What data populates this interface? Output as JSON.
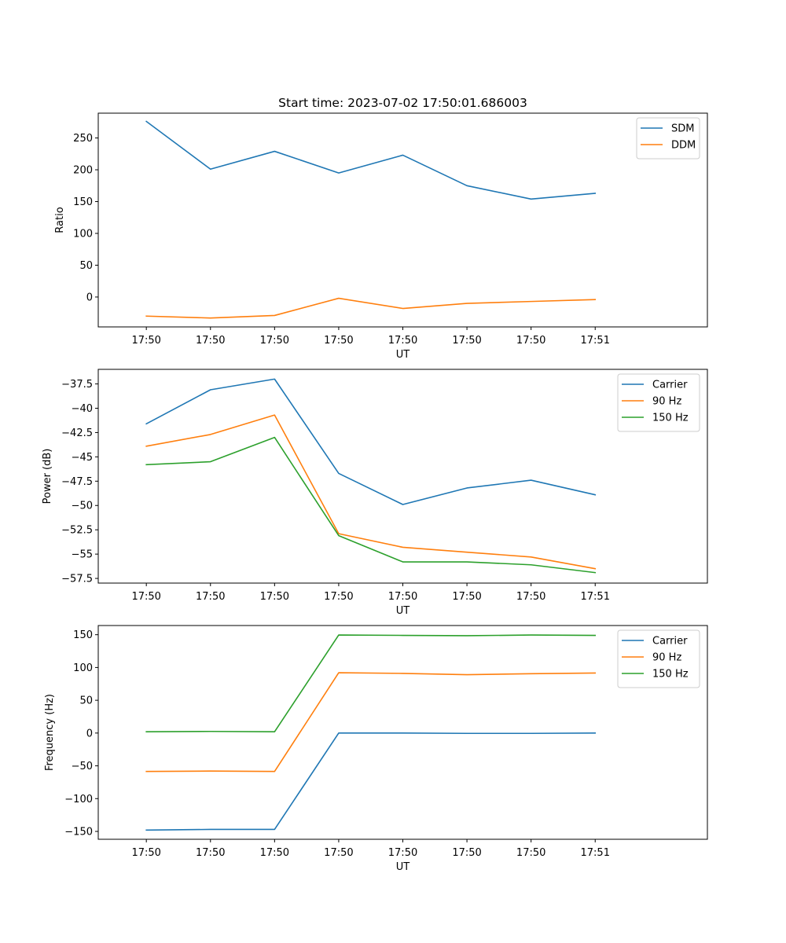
{
  "figure_title": "Start time: 2023-07-02 17:50:01.686003",
  "colors": {
    "blue": "#1f77b4",
    "orange": "#ff7f0e",
    "green": "#2ca02c"
  },
  "chart_data": [
    {
      "type": "line",
      "title": "Start time: 2023-07-02 17:50:01.686003",
      "xlabel": "UT",
      "ylabel": "Ratio",
      "x_tick_labels": [
        "17:50",
        "17:50",
        "17:50",
        "17:50",
        "17:50",
        "17:50",
        "17:50",
        "17:51"
      ],
      "xlim": [
        -0.75,
        8.75
      ],
      "x": [
        0,
        1,
        2,
        3,
        4,
        5,
        6,
        7
      ],
      "ylim": [
        -47,
        289
      ],
      "y_ticks": [
        0,
        50,
        100,
        150,
        200,
        250
      ],
      "legend": "top-right",
      "series": [
        {
          "name": "SDM",
          "color": "#1f77b4",
          "values": [
            276,
            201,
            229,
            195,
            223,
            175,
            154,
            163
          ]
        },
        {
          "name": "DDM",
          "color": "#ff7f0e",
          "values": [
            -30,
            -33,
            -29,
            -2,
            -18,
            -10,
            -7,
            -4
          ]
        }
      ]
    },
    {
      "type": "line",
      "xlabel": "UT",
      "ylabel": "Power (dB)",
      "x_tick_labels": [
        "17:50",
        "17:50",
        "17:50",
        "17:50",
        "17:50",
        "17:50",
        "17:50",
        "17:51"
      ],
      "xlim": [
        -0.75,
        8.75
      ],
      "x": [
        0,
        1,
        2,
        3,
        4,
        5,
        6,
        7
      ],
      "ylim": [
        -57.98,
        -36.0
      ],
      "y_ticks": [
        -57.5,
        -55.0,
        -52.5,
        -50.0,
        -47.5,
        -45.0,
        -42.5,
        -40.0,
        -37.5
      ],
      "legend": "top-right",
      "series": [
        {
          "name": "Carrier",
          "color": "#1f77b4",
          "values": [
            -41.6,
            -38.1,
            -37.0,
            -46.7,
            -49.9,
            -48.2,
            -47.4,
            -48.9
          ]
        },
        {
          "name": "90 Hz",
          "color": "#ff7f0e",
          "values": [
            -43.9,
            -42.7,
            -40.7,
            -52.9,
            -54.3,
            -54.8,
            -55.3,
            -56.5
          ]
        },
        {
          "name": "150 Hz",
          "color": "#2ca02c",
          "values": [
            -45.8,
            -45.5,
            -43.0,
            -53.1,
            -55.8,
            -55.8,
            -56.1,
            -56.9
          ]
        }
      ]
    },
    {
      "type": "line",
      "xlabel": "UT",
      "ylabel": "Frequency (Hz)",
      "x_tick_labels": [
        "17:50",
        "17:50",
        "17:50",
        "17:50",
        "17:50",
        "17:50",
        "17:50",
        "17:51"
      ],
      "xlim": [
        -0.75,
        8.75
      ],
      "x": [
        0,
        1,
        2,
        3,
        4,
        5,
        6,
        7
      ],
      "ylim": [
        -162,
        164
      ],
      "y_ticks": [
        -150,
        -100,
        -50,
        0,
        50,
        100,
        150
      ],
      "legend": "top-right",
      "series": [
        {
          "name": "Carrier",
          "color": "#1f77b4",
          "values": [
            -148,
            -147,
            -147,
            0,
            0,
            -0.5,
            -0.5,
            0
          ]
        },
        {
          "name": "90 Hz",
          "color": "#ff7f0e",
          "values": [
            -58.5,
            -58,
            -58.5,
            92,
            91,
            89,
            90.5,
            91.5
          ]
        },
        {
          "name": "150 Hz",
          "color": "#2ca02c",
          "values": [
            2,
            2.5,
            2,
            149.5,
            149,
            148.5,
            149.5,
            149
          ]
        }
      ]
    }
  ]
}
